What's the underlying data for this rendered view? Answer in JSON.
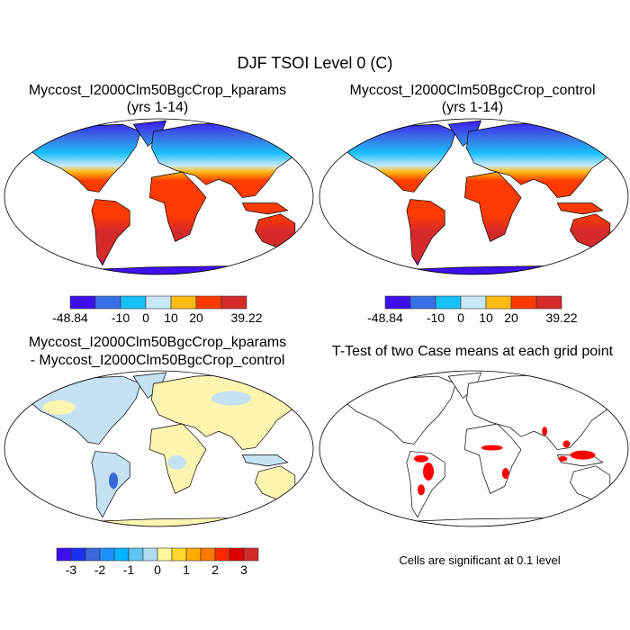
{
  "figure": {
    "title": "DJF TSOI Level 0 (C)",
    "panels": [
      {
        "id": "kparams",
        "title_line1": "Myccost_I2000Clm50BgcCrop_kparams",
        "title_line2": "(yrs 1-14)"
      },
      {
        "id": "control",
        "title_line1": "Myccost_I2000Clm50BgcCrop_control",
        "title_line2": "(yrs 1-14)"
      },
      {
        "id": "difference",
        "title_line1": "Myccost_I2000Clm50BgcCrop_kparams",
        "title_line2": "- Myccost_I2000Clm50BgcCrop_control"
      },
      {
        "id": "ttest",
        "title_line1": "T-Test of two Case means at each grid point",
        "note": "Cells are significant at 0.1 level"
      }
    ]
  },
  "colorbars": {
    "absolute": {
      "colors": [
        "#3d10f0",
        "#3a70e6",
        "#16c0f8",
        "#c8e8f8",
        "#ffbb14",
        "#ff3a00",
        "#d42a2a"
      ],
      "labels": [
        "-48.84",
        "",
        "-10",
        "0",
        "10",
        "20",
        "",
        "39.22"
      ]
    },
    "difference": {
      "colors": [
        "#3d10f0",
        "#1a30f0",
        "#3a66de",
        "#1e90ff",
        "#00b4ff",
        "#5ec4f0",
        "#b0dcf2",
        "#fff79a",
        "#ffd82a",
        "#ffab00",
        "#ff7800",
        "#ff2a00",
        "#e00000",
        "#d42a2a"
      ],
      "labels": [
        "-3",
        "-2",
        "-1",
        "0",
        "1",
        "2",
        "3"
      ]
    }
  }
}
